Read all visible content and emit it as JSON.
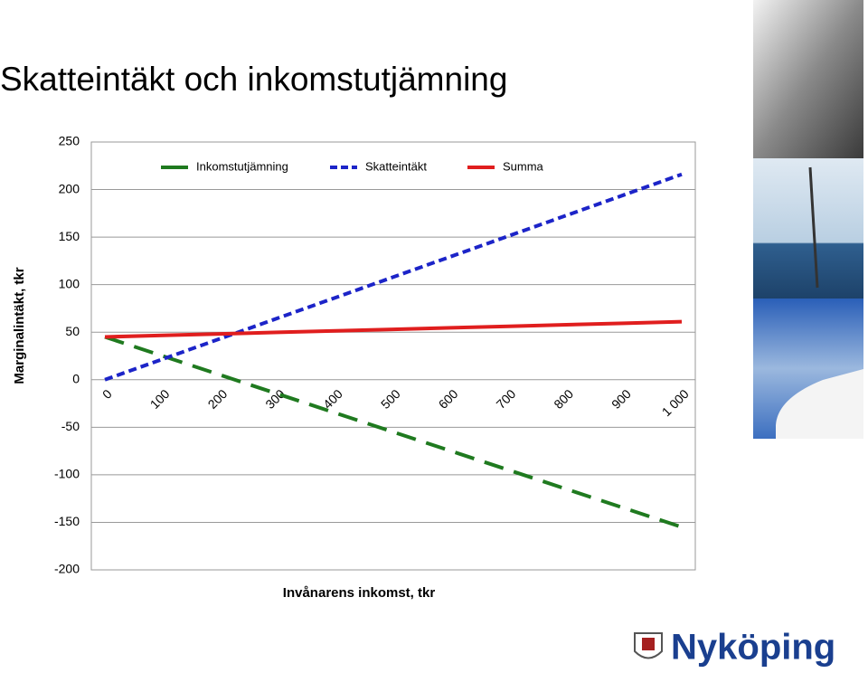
{
  "chart_data": {
    "type": "line",
    "title": "Skatteintäkt och inkomstutjämning",
    "y_label": "Marginalintäkt, tkr",
    "x_label": "Invånarens inkomst, tkr",
    "categories": [
      "0",
      "100",
      "200",
      "300",
      "400",
      "500",
      "600",
      "700",
      "800",
      "900",
      "1 000"
    ],
    "series": [
      {
        "name": "Inkomstutjämning",
        "color": "#1f7a1f",
        "dash": "22,12",
        "values": [
          45,
          25,
          5,
          -15,
          -35,
          -55,
          -75,
          -95,
          -115,
          -135,
          -155
        ]
      },
      {
        "name": "Skatteintäkt",
        "color": "#1c24c8",
        "dash": "9,5",
        "values": [
          0,
          21.6,
          43.2,
          64.8,
          86.4,
          108,
          129.6,
          151.2,
          172.8,
          194.4,
          216
        ]
      },
      {
        "name": "Summa",
        "color": "#e01e1e",
        "dash": null,
        "values": [
          45,
          46.6,
          48.2,
          49.8,
          51.4,
          53,
          54.6,
          56.2,
          57.8,
          59.4,
          61
        ]
      }
    ],
    "ylim": [
      -200,
      250
    ],
    "yticks": [
      -200,
      -150,
      -100,
      -50,
      0,
      50,
      100,
      150,
      200,
      250
    ],
    "grid": true,
    "legend": "top",
    "logo": "Nyköping"
  }
}
